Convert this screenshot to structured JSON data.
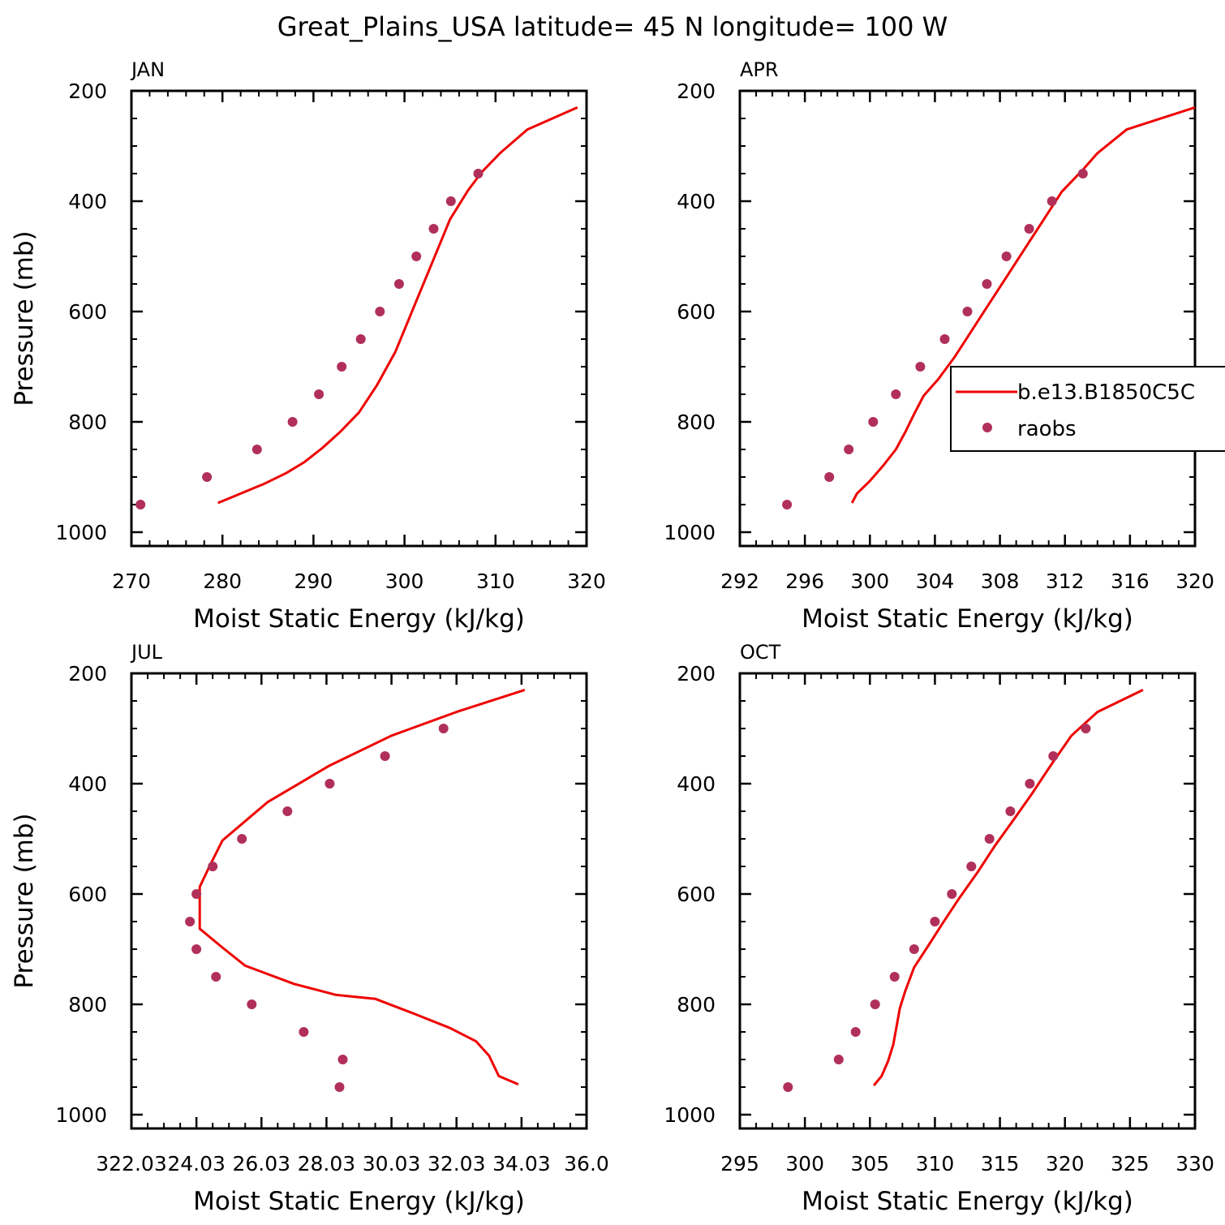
{
  "figure_title": "Great_Plains_USA  latitude= 45 N longitude= 100 W",
  "legend": {
    "entries": [
      {
        "label": "b.e13.B1850C5C",
        "kind": "line",
        "color": "#ee0000"
      },
      {
        "label": "raobs",
        "kind": "marker",
        "color": "#b0305a"
      }
    ]
  },
  "colors": {
    "model_line": "#ee0000",
    "raobs_marker": "#b0305a",
    "axes": "#000000"
  },
  "chart_data": [
    {
      "type": "line",
      "panel": "JAN",
      "xlabel": "Moist Static Energy (kJ/kg)",
      "ylabel": "Pressure (mb)",
      "xlim": [
        270,
        320
      ],
      "ylim": [
        1025,
        200
      ],
      "y_inverted": true,
      "xticks": [
        270,
        280,
        290,
        300,
        310,
        320
      ],
      "xtick_labels": [
        "270",
        "280",
        "290",
        "300",
        "310",
        "320"
      ],
      "yticks": [
        200,
        400,
        600,
        800,
        1000
      ],
      "ytick_labels": [
        "200",
        "400",
        "600",
        "800",
        "1000"
      ],
      "series": [
        {
          "name": "b.e13.B1850C5C",
          "kind": "line",
          "points": [
            [
              279.5,
              947
            ],
            [
              282,
              930
            ],
            [
              284.5,
              913
            ],
            [
              287,
              893
            ],
            [
              289,
              873
            ],
            [
              291,
              847
            ],
            [
              293,
              817
            ],
            [
              295,
              783
            ],
            [
              297,
              733
            ],
            [
              299,
              673
            ],
            [
              301,
              593
            ],
            [
              303,
              513
            ],
            [
              305,
              433
            ],
            [
              307,
              380
            ],
            [
              308.5,
              347
            ],
            [
              310.5,
              313
            ],
            [
              313.5,
              270
            ],
            [
              319,
              230
            ]
          ]
        },
        {
          "name": "raobs",
          "kind": "marker",
          "points": [
            [
              271,
              950
            ],
            [
              278.3,
              900
            ],
            [
              283.8,
              850
            ],
            [
              287.7,
              800
            ],
            [
              290.6,
              750
            ],
            [
              293.1,
              700
            ],
            [
              295.2,
              650
            ],
            [
              297.3,
              600
            ],
            [
              299.4,
              550
            ],
            [
              301.3,
              500
            ],
            [
              303.2,
              450
            ],
            [
              305.1,
              400
            ],
            [
              308.1,
              350
            ]
          ]
        }
      ]
    },
    {
      "type": "line",
      "panel": "APR",
      "xlabel": "Moist Static Energy (kJ/kg)",
      "ylabel": "",
      "xlim": [
        292,
        320
      ],
      "ylim": [
        1025,
        200
      ],
      "y_inverted": true,
      "xticks": [
        292,
        296,
        300,
        304,
        308,
        312,
        316,
        320
      ],
      "xtick_labels": [
        "292",
        "296",
        "300",
        "304",
        "308",
        "312",
        "316",
        "320"
      ],
      "yticks": [
        200,
        400,
        600,
        800,
        1000
      ],
      "ytick_labels": [
        "200",
        "400",
        "600",
        "800",
        "1000"
      ],
      "series": [
        {
          "name": "b.e13.B1850C5C",
          "kind": "line",
          "points": [
            [
              298.9,
              947
            ],
            [
              299.2,
              930
            ],
            [
              300,
              907
            ],
            [
              300.8,
              880
            ],
            [
              301.6,
              850
            ],
            [
              302.2,
              817
            ],
            [
              302.7,
              787
            ],
            [
              303.3,
              753
            ],
            [
              304.2,
              723
            ],
            [
              305.2,
              683
            ],
            [
              306.3,
              633
            ],
            [
              307.4,
              583
            ],
            [
              308.5,
              533
            ],
            [
              309.6,
              483
            ],
            [
              310.7,
              433
            ],
            [
              311.8,
              383
            ],
            [
              313.1,
              343
            ],
            [
              314,
              313
            ],
            [
              315.8,
              270
            ],
            [
              320,
              230
            ]
          ]
        },
        {
          "name": "raobs",
          "kind": "marker",
          "points": [
            [
              294.9,
              950
            ],
            [
              297.5,
              900
            ],
            [
              298.7,
              850
            ],
            [
              300.2,
              800
            ],
            [
              301.6,
              750
            ],
            [
              303.1,
              700
            ],
            [
              304.6,
              650
            ],
            [
              306,
              600
            ],
            [
              307.2,
              550
            ],
            [
              308.4,
              500
            ],
            [
              309.8,
              450
            ],
            [
              311.2,
              400
            ],
            [
              313.1,
              350
            ]
          ]
        }
      ]
    },
    {
      "type": "line",
      "panel": "JUL",
      "xlabel": "Moist Static Energy (kJ/kg)",
      "ylabel": "Pressure (mb)",
      "xlim": [
        322.03,
        336.03
      ],
      "ylim": [
        1025,
        200
      ],
      "y_inverted": true,
      "xticks": [
        322.03,
        324.03,
        326.03,
        328.03,
        330.03,
        332.03,
        334.03,
        336.03
      ],
      "xtick_labels": [
        "322.03",
        "24.03",
        "26.03",
        "28.03",
        "30.03",
        "32.03",
        "34.03",
        "36.0"
      ],
      "yticks": [
        200,
        400,
        600,
        800,
        1000
      ],
      "ytick_labels": [
        "200",
        "400",
        "600",
        "800",
        "1000"
      ],
      "series": [
        {
          "name": "b.e13.B1850C5C",
          "kind": "line",
          "points": [
            [
              333.93,
              945
            ],
            [
              333.33,
              930
            ],
            [
              333.03,
              893
            ],
            [
              332.63,
              867
            ],
            [
              331.83,
              843
            ],
            [
              330.73,
              817
            ],
            [
              329.53,
              790
            ],
            [
              328.33,
              783
            ],
            [
              327.03,
              763
            ],
            [
              325.53,
              730
            ],
            [
              324.83,
              697
            ],
            [
              324.13,
              663
            ],
            [
              324.13,
              617
            ],
            [
              324.13,
              587
            ],
            [
              324.43,
              550
            ],
            [
              324.83,
              503
            ],
            [
              326.23,
              433
            ],
            [
              328.13,
              367
            ],
            [
              330.03,
              313
            ],
            [
              332.03,
              270
            ],
            [
              334.13,
              230
            ]
          ]
        },
        {
          "name": "raobs",
          "kind": "marker",
          "points": [
            [
              328.43,
              950
            ],
            [
              328.53,
              900
            ],
            [
              327.33,
              850
            ],
            [
              325.73,
              800
            ],
            [
              324.63,
              750
            ],
            [
              324.03,
              700
            ],
            [
              323.83,
              650
            ],
            [
              324.03,
              600
            ],
            [
              324.53,
              550
            ],
            [
              325.43,
              500
            ],
            [
              326.83,
              450
            ],
            [
              328.13,
              400
            ],
            [
              329.83,
              350
            ],
            [
              331.63,
              300
            ]
          ]
        }
      ]
    },
    {
      "type": "line",
      "panel": "OCT",
      "xlabel": "Moist Static Energy (kJ/kg)",
      "ylabel": "",
      "xlim": [
        295,
        330
      ],
      "ylim": [
        1025,
        200
      ],
      "y_inverted": true,
      "xticks": [
        295,
        300,
        305,
        310,
        315,
        320,
        325,
        330
      ],
      "xtick_labels": [
        "295",
        "300",
        "305",
        "310",
        "315",
        "320",
        "325",
        "330"
      ],
      "yticks": [
        200,
        400,
        600,
        800,
        1000
      ],
      "ytick_labels": [
        "200",
        "400",
        "600",
        "800",
        "1000"
      ],
      "series": [
        {
          "name": "b.e13.B1850C5C",
          "kind": "line",
          "points": [
            [
              305.3,
              947
            ],
            [
              305.9,
              930
            ],
            [
              306.4,
              903
            ],
            [
              306.8,
              873
            ],
            [
              307,
              847
            ],
            [
              307.3,
              807
            ],
            [
              307.7,
              777
            ],
            [
              308.4,
              733
            ],
            [
              309.4,
              697
            ],
            [
              310.6,
              653
            ],
            [
              311.8,
              610
            ],
            [
              313.3,
              560
            ],
            [
              314.6,
              513
            ],
            [
              316,
              467
            ],
            [
              317.5,
              417
            ],
            [
              318.9,
              367
            ],
            [
              320.5,
              313
            ],
            [
              322.5,
              270
            ],
            [
              326,
              230
            ]
          ]
        },
        {
          "name": "raobs",
          "kind": "marker",
          "points": [
            [
              298.7,
              950
            ],
            [
              302.6,
              900
            ],
            [
              303.9,
              850
            ],
            [
              305.4,
              800
            ],
            [
              306.9,
              750
            ],
            [
              308.4,
              700
            ],
            [
              310,
              650
            ],
            [
              311.3,
              600
            ],
            [
              312.8,
              550
            ],
            [
              314.2,
              500
            ],
            [
              315.8,
              450
            ],
            [
              317.3,
              400
            ],
            [
              319.1,
              350
            ],
            [
              321.6,
              300
            ]
          ]
        }
      ]
    }
  ]
}
